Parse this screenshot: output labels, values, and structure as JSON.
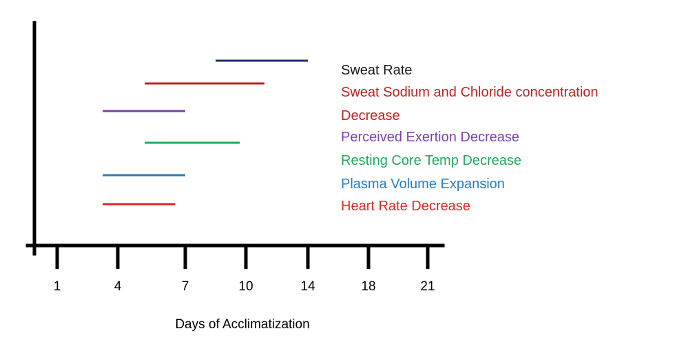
{
  "chart_data": {
    "type": "timeline",
    "title": "",
    "xlabel": "Days of Acclimatization",
    "ylabel": "",
    "ticks": [
      "1",
      "4",
      "7",
      "10",
      "14",
      "18",
      "21"
    ],
    "grid": false,
    "legend_position": "right",
    "series": [
      {
        "name": "Sweat Rate",
        "start_tick": 2.5,
        "end_tick": 4.0,
        "color": "#1f2f6b"
      },
      {
        "name": "Sweat Sodium and Chloride concentration",
        "start_tick": 1.4,
        "end_tick": 3.3,
        "color": "#c0211f"
      },
      {
        "name": "Decrease",
        "start_tick": 0.75,
        "end_tick": 2.0,
        "color": "#7a3fb0"
      },
      {
        "name": "Perceived Exertion Decrease",
        "start_tick": 1.4,
        "end_tick": 2.9,
        "color": "#22a85a"
      },
      {
        "name": "Resting Core Temp Decrease",
        "start_tick": 0.75,
        "end_tick": 2.0,
        "color": "#2a7cc0"
      },
      {
        "name": "Plasma Volume Expansion",
        "start_tick": 0.75,
        "end_tick": 1.85,
        "color": "#e32424"
      }
    ],
    "labels": [
      {
        "text": "Sweat Rate",
        "color": "#1a1a1a"
      },
      {
        "text": "Sweat Sodium and Chloride concentration",
        "color": "#c0211f"
      },
      {
        "text": "Decrease",
        "color": "#c0211f"
      },
      {
        "text": "Perceived Exertion Decrease",
        "color": "#7a3fb0"
      },
      {
        "text": "Resting Core Temp Decrease",
        "color": "#22a85a"
      },
      {
        "text": "Plasma Volume Expansion",
        "color": "#2a7cc0"
      },
      {
        "text": "Heart Rate Decrease",
        "color": "#e32424"
      }
    ]
  }
}
